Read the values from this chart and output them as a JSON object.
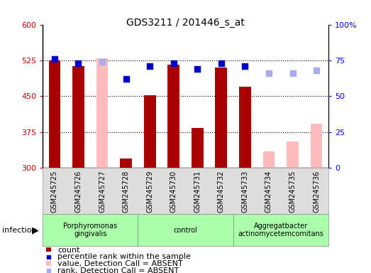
{
  "title": "GDS3211 / 201446_s_at",
  "samples": [
    "GSM245725",
    "GSM245726",
    "GSM245727",
    "GSM245728",
    "GSM245729",
    "GSM245730",
    "GSM245731",
    "GSM245732",
    "GSM245733",
    "GSM245734",
    "GSM245735",
    "GSM245736"
  ],
  "count_values": [
    525,
    513,
    null,
    320,
    452,
    516,
    383,
    510,
    470,
    null,
    null,
    null
  ],
  "count_absent": [
    null,
    null,
    530,
    null,
    null,
    null,
    null,
    null,
    null,
    335,
    355,
    393
  ],
  "rank_values": [
    76,
    73,
    null,
    62,
    71,
    73,
    69,
    73,
    71,
    null,
    null,
    null
  ],
  "rank_absent": [
    null,
    null,
    74,
    null,
    null,
    null,
    null,
    null,
    null,
    66,
    66,
    68
  ],
  "ylim_left": [
    300,
    600
  ],
  "ylim_right": [
    0,
    100
  ],
  "yticks_left": [
    300,
    375,
    450,
    525,
    600
  ],
  "yticks_right": [
    0,
    25,
    50,
    75,
    100
  ],
  "bar_color_present": "#aa0000",
  "bar_color_absent": "#ffbbbb",
  "dot_color_present": "#0000cc",
  "dot_color_absent": "#aaaaee",
  "bar_width": 0.5,
  "dot_size": 28,
  "background_plot": "#ffffff",
  "background_xtick": "#dddddd",
  "background_group": "#aaffaa",
  "legend_items": [
    {
      "label": "count",
      "color": "#aa0000",
      "type": "bar"
    },
    {
      "label": "percentile rank within the sample",
      "color": "#0000cc",
      "type": "dot"
    },
    {
      "label": "value, Detection Call = ABSENT",
      "color": "#ffbbbb",
      "type": "bar"
    },
    {
      "label": "rank, Detection Call = ABSENT",
      "color": "#aaaaee",
      "type": "dot"
    }
  ],
  "groups_config": [
    [
      0,
      4,
      "Porphyromonas\ngingivalis"
    ],
    [
      4,
      8,
      "control"
    ],
    [
      8,
      12,
      "Aggregatbacter\nactinomycetemcomitans"
    ]
  ]
}
